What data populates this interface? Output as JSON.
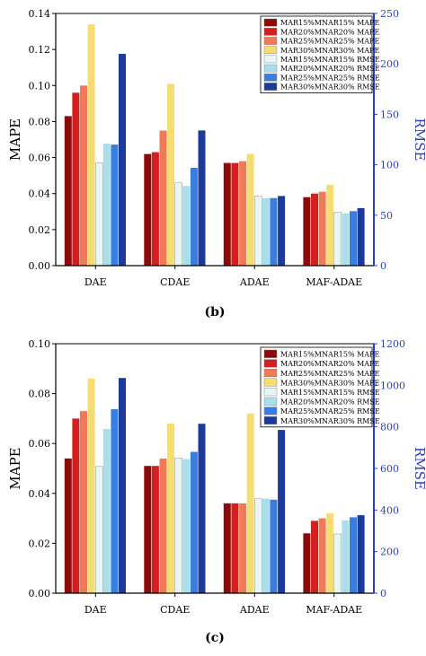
{
  "figure": {
    "legend": [
      {
        "series": "MAR15%MNAR15% MAPE",
        "color": "#8b0a0a"
      },
      {
        "series": "MAR20%MNAR20% MAPE",
        "color": "#d41f1f"
      },
      {
        "series": "MAR25%MNAR25% MAPE",
        "color": "#f07a55"
      },
      {
        "series": "MAR30%MNAR30% MAPE",
        "color": "#f6dd73"
      },
      {
        "series": "MAR15%MNAR15% RMSE",
        "color": "#e6f6f4"
      },
      {
        "series": "MAR20%MNAR20% RMSE",
        "color": "#a9dfeb"
      },
      {
        "series": "MAR25%MNAR25% RMSE",
        "color": "#3a7de0"
      },
      {
        "series": "MAR30%MNAR30% RMSE",
        "color": "#1b3a9c"
      }
    ],
    "axis_colors": {
      "left": "#000000",
      "right": "#2b3fb8"
    }
  },
  "chart_data": [
    {
      "type": "bar",
      "panel_label": "(b)",
      "categories": [
        "DAE",
        "CDAE",
        "ADAE",
        "MAF-ADAE"
      ],
      "ylabel": "MAPE",
      "y2label": "RMSE",
      "ylim": [
        0,
        0.14
      ],
      "y2lim": [
        0,
        250
      ],
      "yticks": [
        "0.00",
        "0.02",
        "0.04",
        "0.06",
        "0.08",
        "0.10",
        "0.12",
        "0.14"
      ],
      "y2ticks": [
        "0",
        "50",
        "100",
        "150",
        "200",
        "250"
      ],
      "grid": false,
      "legend_position": "top-right",
      "series": [
        {
          "name": "MAR15%MNAR15% MAPE",
          "axis": "left",
          "values": [
            0.083,
            0.062,
            0.057,
            0.038
          ]
        },
        {
          "name": "MAR20%MNAR20% MAPE",
          "axis": "left",
          "values": [
            0.096,
            0.063,
            0.057,
            0.04
          ]
        },
        {
          "name": "MAR25%MNAR25% MAPE",
          "axis": "left",
          "values": [
            0.1,
            0.075,
            0.058,
            0.041
          ]
        },
        {
          "name": "MAR30%MNAR30% MAPE",
          "axis": "left",
          "values": [
            0.134,
            0.101,
            0.062,
            0.045
          ]
        },
        {
          "name": "MAR15%MNAR15% RMSE",
          "axis": "right",
          "values": [
            102,
            82,
            69,
            53
          ]
        },
        {
          "name": "MAR20%MNAR20% RMSE",
          "axis": "right",
          "values": [
            121,
            79,
            67,
            52
          ]
        },
        {
          "name": "MAR25%MNAR25% RMSE",
          "axis": "right",
          "values": [
            120,
            97,
            67,
            54
          ]
        },
        {
          "name": "MAR30%MNAR30% RMSE",
          "axis": "right",
          "values": [
            210,
            134,
            69,
            57
          ]
        }
      ]
    },
    {
      "type": "bar",
      "panel_label": "(c)",
      "categories": [
        "DAE",
        "CDAE",
        "ADAE",
        "MAF-ADAE"
      ],
      "ylabel": "MAPE",
      "y2label": "RMSE",
      "ylim": [
        0,
        0.1
      ],
      "y2lim": [
        0,
        1200
      ],
      "yticks": [
        "0.00",
        "0.02",
        "0.04",
        "0.06",
        "0.08",
        "0.10"
      ],
      "y2ticks": [
        "0",
        "200",
        "400",
        "600",
        "800",
        "1000",
        "1200"
      ],
      "grid": false,
      "legend_position": "top-right",
      "series": [
        {
          "name": "MAR15%MNAR15% MAPE",
          "axis": "left",
          "values": [
            0.054,
            0.051,
            0.036,
            0.024
          ]
        },
        {
          "name": "MAR20%MNAR20% MAPE",
          "axis": "left",
          "values": [
            0.07,
            0.051,
            0.036,
            0.029
          ]
        },
        {
          "name": "MAR25%MNAR25% MAPE",
          "axis": "left",
          "values": [
            0.073,
            0.054,
            0.036,
            0.03
          ]
        },
        {
          "name": "MAR30%MNAR30% MAPE",
          "axis": "left",
          "values": [
            0.086,
            0.068,
            0.072,
            0.032
          ]
        },
        {
          "name": "MAR15%MNAR15% RMSE",
          "axis": "right",
          "values": [
            610,
            650,
            455,
            285
          ]
        },
        {
          "name": "MAR20%MNAR20% RMSE",
          "axis": "right",
          "values": [
            790,
            645,
            455,
            350
          ]
        },
        {
          "name": "MAR25%MNAR25% RMSE",
          "axis": "right",
          "values": [
            885,
            680,
            450,
            365
          ]
        },
        {
          "name": "MAR30%MNAR30% RMSE",
          "axis": "right",
          "values": [
            1035,
            815,
            785,
            375
          ]
        }
      ]
    }
  ]
}
